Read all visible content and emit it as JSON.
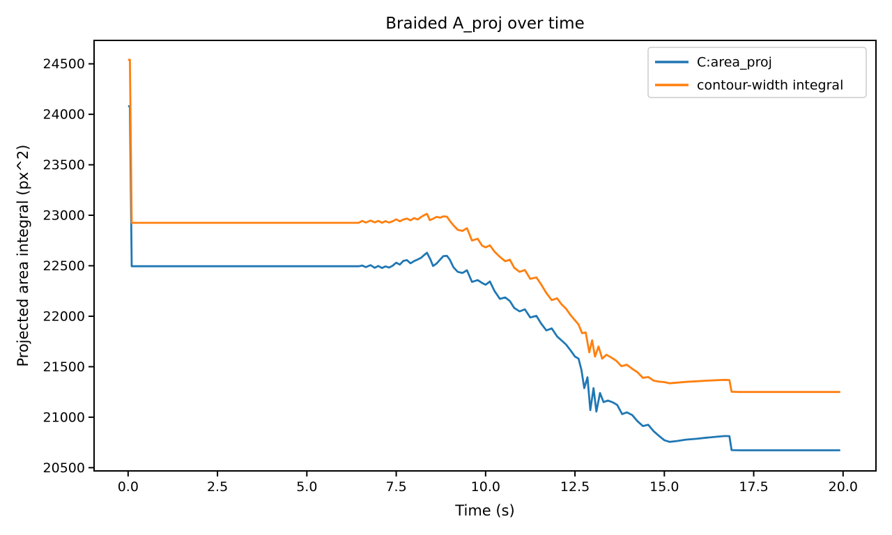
{
  "chart_data": {
    "type": "line",
    "title": "Braided A_proj over time",
    "xlabel": "Time (s)",
    "ylabel": "Projected area integral (px^2)",
    "xlim": [
      -0.952,
      20.92
    ],
    "ylim": [
      20468,
      24732
    ],
    "grid": false,
    "legend_position": "upper right",
    "x_ticks": [
      0.0,
      2.5,
      5.0,
      7.5,
      10.0,
      12.5,
      15.0,
      17.5,
      20.0
    ],
    "x_tick_labels": [
      "0.0",
      "2.5",
      "5.0",
      "7.5",
      "10.0",
      "12.5",
      "15.0",
      "17.5",
      "20.0"
    ],
    "y_ticks": [
      20500,
      21000,
      21500,
      22000,
      22500,
      23000,
      23500,
      24000,
      24500
    ],
    "y_tick_labels": [
      "20500",
      "21000",
      "21500",
      "22000",
      "22500",
      "23000",
      "23500",
      "24000",
      "24500"
    ],
    "series": [
      {
        "name": "C:area_proj",
        "color": "#1f77b4",
        "points": [
          [
            0.0,
            24080
          ],
          [
            0.05,
            24080
          ],
          [
            0.1,
            22495
          ],
          [
            1.0,
            22495
          ],
          [
            2.0,
            22495
          ],
          [
            3.0,
            22495
          ],
          [
            4.0,
            22495
          ],
          [
            5.0,
            22495
          ],
          [
            6.0,
            22495
          ],
          [
            6.45,
            22495
          ],
          [
            6.55,
            22502
          ],
          [
            6.65,
            22486
          ],
          [
            6.78,
            22506
          ],
          [
            6.9,
            22480
          ],
          [
            7.0,
            22498
          ],
          [
            7.1,
            22478
          ],
          [
            7.2,
            22494
          ],
          [
            7.3,
            22482
          ],
          [
            7.4,
            22500
          ],
          [
            7.5,
            22530
          ],
          [
            7.6,
            22512
          ],
          [
            7.7,
            22548
          ],
          [
            7.8,
            22556
          ],
          [
            7.9,
            22524
          ],
          [
            8.0,
            22546
          ],
          [
            8.1,
            22562
          ],
          [
            8.2,
            22580
          ],
          [
            8.28,
            22606
          ],
          [
            8.36,
            22628
          ],
          [
            8.46,
            22560
          ],
          [
            8.53,
            22498
          ],
          [
            8.63,
            22522
          ],
          [
            8.73,
            22562
          ],
          [
            8.82,
            22596
          ],
          [
            8.92,
            22598
          ],
          [
            9.0,
            22560
          ],
          [
            9.1,
            22485
          ],
          [
            9.22,
            22440
          ],
          [
            9.35,
            22428
          ],
          [
            9.48,
            22455
          ],
          [
            9.62,
            22340
          ],
          [
            9.78,
            22358
          ],
          [
            9.9,
            22330
          ],
          [
            10.0,
            22312
          ],
          [
            10.12,
            22344
          ],
          [
            10.25,
            22250
          ],
          [
            10.4,
            22172
          ],
          [
            10.55,
            22186
          ],
          [
            10.68,
            22150
          ],
          [
            10.8,
            22082
          ],
          [
            10.95,
            22048
          ],
          [
            11.1,
            22068
          ],
          [
            11.25,
            21988
          ],
          [
            11.42,
            22004
          ],
          [
            11.55,
            21930
          ],
          [
            11.7,
            21860
          ],
          [
            11.85,
            21880
          ],
          [
            12.0,
            21800
          ],
          [
            12.12,
            21762
          ],
          [
            12.25,
            21720
          ],
          [
            12.38,
            21660
          ],
          [
            12.5,
            21600
          ],
          [
            12.6,
            21580
          ],
          [
            12.68,
            21470
          ],
          [
            12.76,
            21288
          ],
          [
            12.85,
            21395
          ],
          [
            12.93,
            21070
          ],
          [
            13.02,
            21288
          ],
          [
            13.1,
            21055
          ],
          [
            13.2,
            21240
          ],
          [
            13.3,
            21150
          ],
          [
            13.42,
            21165
          ],
          [
            13.55,
            21148
          ],
          [
            13.68,
            21122
          ],
          [
            13.82,
            21030
          ],
          [
            13.95,
            21048
          ],
          [
            14.1,
            21022
          ],
          [
            14.25,
            20960
          ],
          [
            14.4,
            20912
          ],
          [
            14.55,
            20925
          ],
          [
            14.7,
            20862
          ],
          [
            14.85,
            20815
          ],
          [
            15.0,
            20772
          ],
          [
            15.15,
            20756
          ],
          [
            15.35,
            20764
          ],
          [
            15.6,
            20778
          ],
          [
            15.9,
            20786
          ],
          [
            16.2,
            20798
          ],
          [
            16.45,
            20806
          ],
          [
            16.7,
            20814
          ],
          [
            16.82,
            20812
          ],
          [
            16.88,
            20674
          ],
          [
            17.1,
            20672
          ],
          [
            18.0,
            20672
          ],
          [
            19.0,
            20672
          ],
          [
            19.92,
            20672
          ]
        ]
      },
      {
        "name": "contour-width integral",
        "color": "#ff7f0e",
        "points": [
          [
            0.0,
            24540
          ],
          [
            0.05,
            24540
          ],
          [
            0.1,
            22925
          ],
          [
            1.0,
            22925
          ],
          [
            2.0,
            22925
          ],
          [
            3.0,
            22925
          ],
          [
            4.0,
            22925
          ],
          [
            5.0,
            22925
          ],
          [
            6.0,
            22925
          ],
          [
            6.45,
            22925
          ],
          [
            6.55,
            22944
          ],
          [
            6.65,
            22928
          ],
          [
            6.78,
            22948
          ],
          [
            6.9,
            22930
          ],
          [
            7.0,
            22944
          ],
          [
            7.1,
            22926
          ],
          [
            7.2,
            22942
          ],
          [
            7.3,
            22928
          ],
          [
            7.4,
            22940
          ],
          [
            7.5,
            22960
          ],
          [
            7.6,
            22940
          ],
          [
            7.7,
            22958
          ],
          [
            7.8,
            22968
          ],
          [
            7.9,
            22950
          ],
          [
            8.0,
            22972
          ],
          [
            8.1,
            22958
          ],
          [
            8.2,
            22984
          ],
          [
            8.28,
            23000
          ],
          [
            8.36,
            23015
          ],
          [
            8.44,
            22952
          ],
          [
            8.53,
            22966
          ],
          [
            8.63,
            22984
          ],
          [
            8.73,
            22976
          ],
          [
            8.82,
            22990
          ],
          [
            8.92,
            22986
          ],
          [
            9.0,
            22945
          ],
          [
            9.1,
            22900
          ],
          [
            9.22,
            22856
          ],
          [
            9.35,
            22845
          ],
          [
            9.48,
            22872
          ],
          [
            9.62,
            22750
          ],
          [
            9.78,
            22768
          ],
          [
            9.9,
            22700
          ],
          [
            10.0,
            22682
          ],
          [
            10.12,
            22702
          ],
          [
            10.25,
            22640
          ],
          [
            10.4,
            22588
          ],
          [
            10.55,
            22545
          ],
          [
            10.68,
            22560
          ],
          [
            10.8,
            22480
          ],
          [
            10.95,
            22440
          ],
          [
            11.1,
            22458
          ],
          [
            11.25,
            22370
          ],
          [
            11.42,
            22385
          ],
          [
            11.55,
            22318
          ],
          [
            11.7,
            22230
          ],
          [
            11.85,
            22160
          ],
          [
            12.0,
            22178
          ],
          [
            12.12,
            22120
          ],
          [
            12.25,
            22075
          ],
          [
            12.38,
            22010
          ],
          [
            12.5,
            21960
          ],
          [
            12.6,
            21918
          ],
          [
            12.7,
            21832
          ],
          [
            12.8,
            21840
          ],
          [
            12.9,
            21642
          ],
          [
            12.98,
            21762
          ],
          [
            13.06,
            21600
          ],
          [
            13.16,
            21700
          ],
          [
            13.26,
            21580
          ],
          [
            13.38,
            21618
          ],
          [
            13.5,
            21595
          ],
          [
            13.65,
            21560
          ],
          [
            13.8,
            21505
          ],
          [
            13.95,
            21520
          ],
          [
            14.1,
            21480
          ],
          [
            14.25,
            21445
          ],
          [
            14.4,
            21390
          ],
          [
            14.55,
            21398
          ],
          [
            14.7,
            21362
          ],
          [
            14.85,
            21352
          ],
          [
            15.0,
            21348
          ],
          [
            15.15,
            21336
          ],
          [
            15.35,
            21342
          ],
          [
            15.6,
            21350
          ],
          [
            15.9,
            21356
          ],
          [
            16.2,
            21362
          ],
          [
            16.45,
            21366
          ],
          [
            16.7,
            21370
          ],
          [
            16.82,
            21368
          ],
          [
            16.88,
            21252
          ],
          [
            17.1,
            21250
          ],
          [
            18.0,
            21250
          ],
          [
            19.0,
            21250
          ],
          [
            19.92,
            21250
          ]
        ]
      }
    ],
    "legend": [
      {
        "label": "C:area_proj",
        "color": "#1f77b4"
      },
      {
        "label": "contour-width integral",
        "color": "#ff7f0e"
      }
    ],
    "colors": {
      "axes_edge": "#000000",
      "background": "#ffffff",
      "legend_border": "#cccccc",
      "series_blue": "#1f77b4",
      "series_orange": "#ff7f0e"
    }
  }
}
